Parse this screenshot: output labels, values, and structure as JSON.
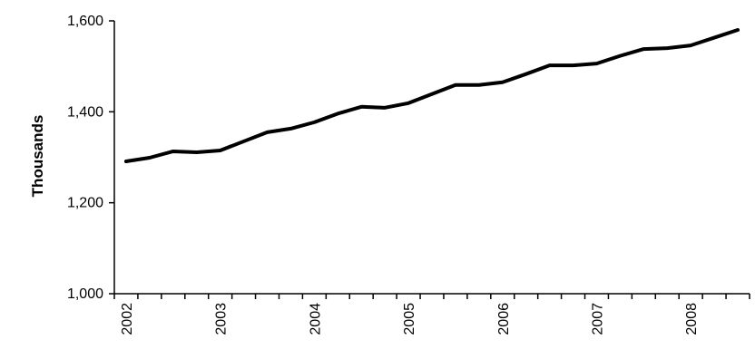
{
  "chart_data": {
    "type": "line",
    "title": "",
    "xlabel": "",
    "ylabel": "Thousands",
    "y_ticks": [
      1000,
      1200,
      1400,
      1600
    ],
    "y_tick_labels": [
      "1,000",
      "1,200",
      "1,400",
      "1,600"
    ],
    "ylim": [
      1000,
      1600
    ],
    "x_tick_labels": [
      "2002",
      "2003",
      "2004",
      "2005",
      "2006",
      "2007",
      "2008"
    ],
    "grid": false,
    "legend": "none",
    "line_color": "#000000",
    "series": [
      {
        "values": [
          1291,
          1299,
          1313,
          1311,
          1315,
          1335,
          1355,
          1363,
          1377,
          1396,
          1411,
          1409,
          1419,
          1439,
          1459,
          1459,
          1465,
          1483,
          1502,
          1502,
          1506,
          1523,
          1538,
          1540,
          1546,
          1563,
          1580
        ]
      }
    ]
  }
}
